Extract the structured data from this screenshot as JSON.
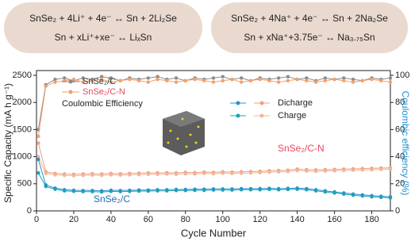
{
  "equations": {
    "left": [
      "SnSe₂ + 4Li⁺ + 4e⁻ ↔ Sn + 2Li₂Se",
      "Sn + xLi⁺+xe⁻ ↔ LiₓSn"
    ],
    "right": [
      "SnSe₂ + 4Na⁺ + 4e⁻ ↔ Sn + 2Na₂Se",
      "Sn + xNa⁺+3.75e⁻ ↔ Na₃.₇₅Sn"
    ]
  },
  "chart_data": {
    "type": "line",
    "xlabel": "Cycle Number",
    "ylabel": "Specific Capacity (mA h g⁻¹)",
    "y2label": "Coulombic efficiency (%)",
    "xlim": [
      0,
      190
    ],
    "xticks": [
      0,
      20,
      40,
      60,
      80,
      100,
      120,
      140,
      160,
      180
    ],
    "ylim": [
      0,
      2500
    ],
    "yticks": [
      0,
      500,
      1000,
      1500,
      2000,
      2500
    ],
    "y2lim": [
      0,
      100
    ],
    "y2ticks": [
      0,
      20,
      40,
      60,
      80,
      100
    ],
    "legend": {
      "ce_items": [
        "SnSe₂/C",
        "SnSe₂/C-N"
      ],
      "ce_note": "Coulombic Efficiency",
      "discharge": "Dicharge",
      "charge": "Charge"
    },
    "annotations": [
      "SnSe₂/C-N",
      "SnSe₂/C"
    ],
    "x": [
      1,
      5,
      10,
      15,
      20,
      25,
      30,
      35,
      40,
      45,
      50,
      55,
      60,
      65,
      70,
      75,
      80,
      85,
      90,
      95,
      100,
      105,
      110,
      115,
      120,
      125,
      130,
      135,
      140,
      145,
      150,
      155,
      160,
      165,
      170,
      175,
      180,
      185,
      190
    ],
    "series": [
      {
        "color": "#f0a07a",
        "values": [
          1250,
          720,
          690,
          680,
          675,
          680,
          685,
          680,
          690,
          685,
          690,
          695,
          700,
          700,
          705,
          700,
          710,
          705,
          715,
          710,
          720,
          715,
          720,
          725,
          730,
          740,
          745,
          750,
          770,
          760,
          755,
          760,
          765,
          770,
          775,
          780,
          785,
          790,
          795
        ]
      },
      {
        "color": "#f2b49a",
        "values": [
          1000,
          690,
          665,
          655,
          650,
          655,
          660,
          655,
          665,
          660,
          665,
          670,
          675,
          675,
          680,
          675,
          685,
          680,
          690,
          685,
          695,
          690,
          695,
          700,
          705,
          715,
          720,
          725,
          745,
          735,
          730,
          735,
          740,
          745,
          750,
          755,
          760,
          765,
          770
        ]
      },
      {
        "color": "#2f8fcf",
        "values": [
          950,
          480,
          420,
          390,
          380,
          375,
          375,
          370,
          380,
          375,
          380,
          385,
          385,
          390,
          390,
          395,
          395,
          400,
          400,
          405,
          405,
          405,
          410,
          410,
          410,
          415,
          410,
          415,
          420,
          410,
          390,
          370,
          350,
          330,
          310,
          295,
          280,
          270,
          260
        ]
      },
      {
        "color": "#1aa1b8",
        "values": [
          700,
          450,
          400,
          370,
          360,
          355,
          355,
          350,
          360,
          355,
          360,
          365,
          365,
          370,
          370,
          375,
          375,
          380,
          380,
          385,
          385,
          385,
          390,
          390,
          390,
          395,
          390,
          395,
          400,
          390,
          370,
          350,
          330,
          310,
          290,
          275,
          260,
          250,
          240
        ]
      },
      {
        "color": "#8c8c8c",
        "axis": "y2",
        "values": [
          60,
          93,
          97,
          98,
          96,
          98,
          97,
          99,
          98,
          96,
          98,
          97,
          98,
          99,
          97,
          98,
          96,
          98,
          97,
          98,
          99,
          97,
          98,
          96,
          98,
          97,
          98,
          99,
          97,
          98,
          96,
          98,
          97,
          98,
          97,
          96,
          98,
          97,
          98
        ]
      },
      {
        "color": "#f5a06a",
        "axis": "y2",
        "values": [
          55,
          92,
          95,
          96,
          97,
          95,
          96,
          97,
          95,
          96,
          97,
          96,
          95,
          97,
          96,
          95,
          96,
          97,
          96,
          95,
          96,
          97,
          95,
          96,
          97,
          96,
          95,
          96,
          97,
          96,
          95,
          96,
          97,
          96,
          95,
          96,
          97,
          96,
          95
        ]
      }
    ]
  }
}
